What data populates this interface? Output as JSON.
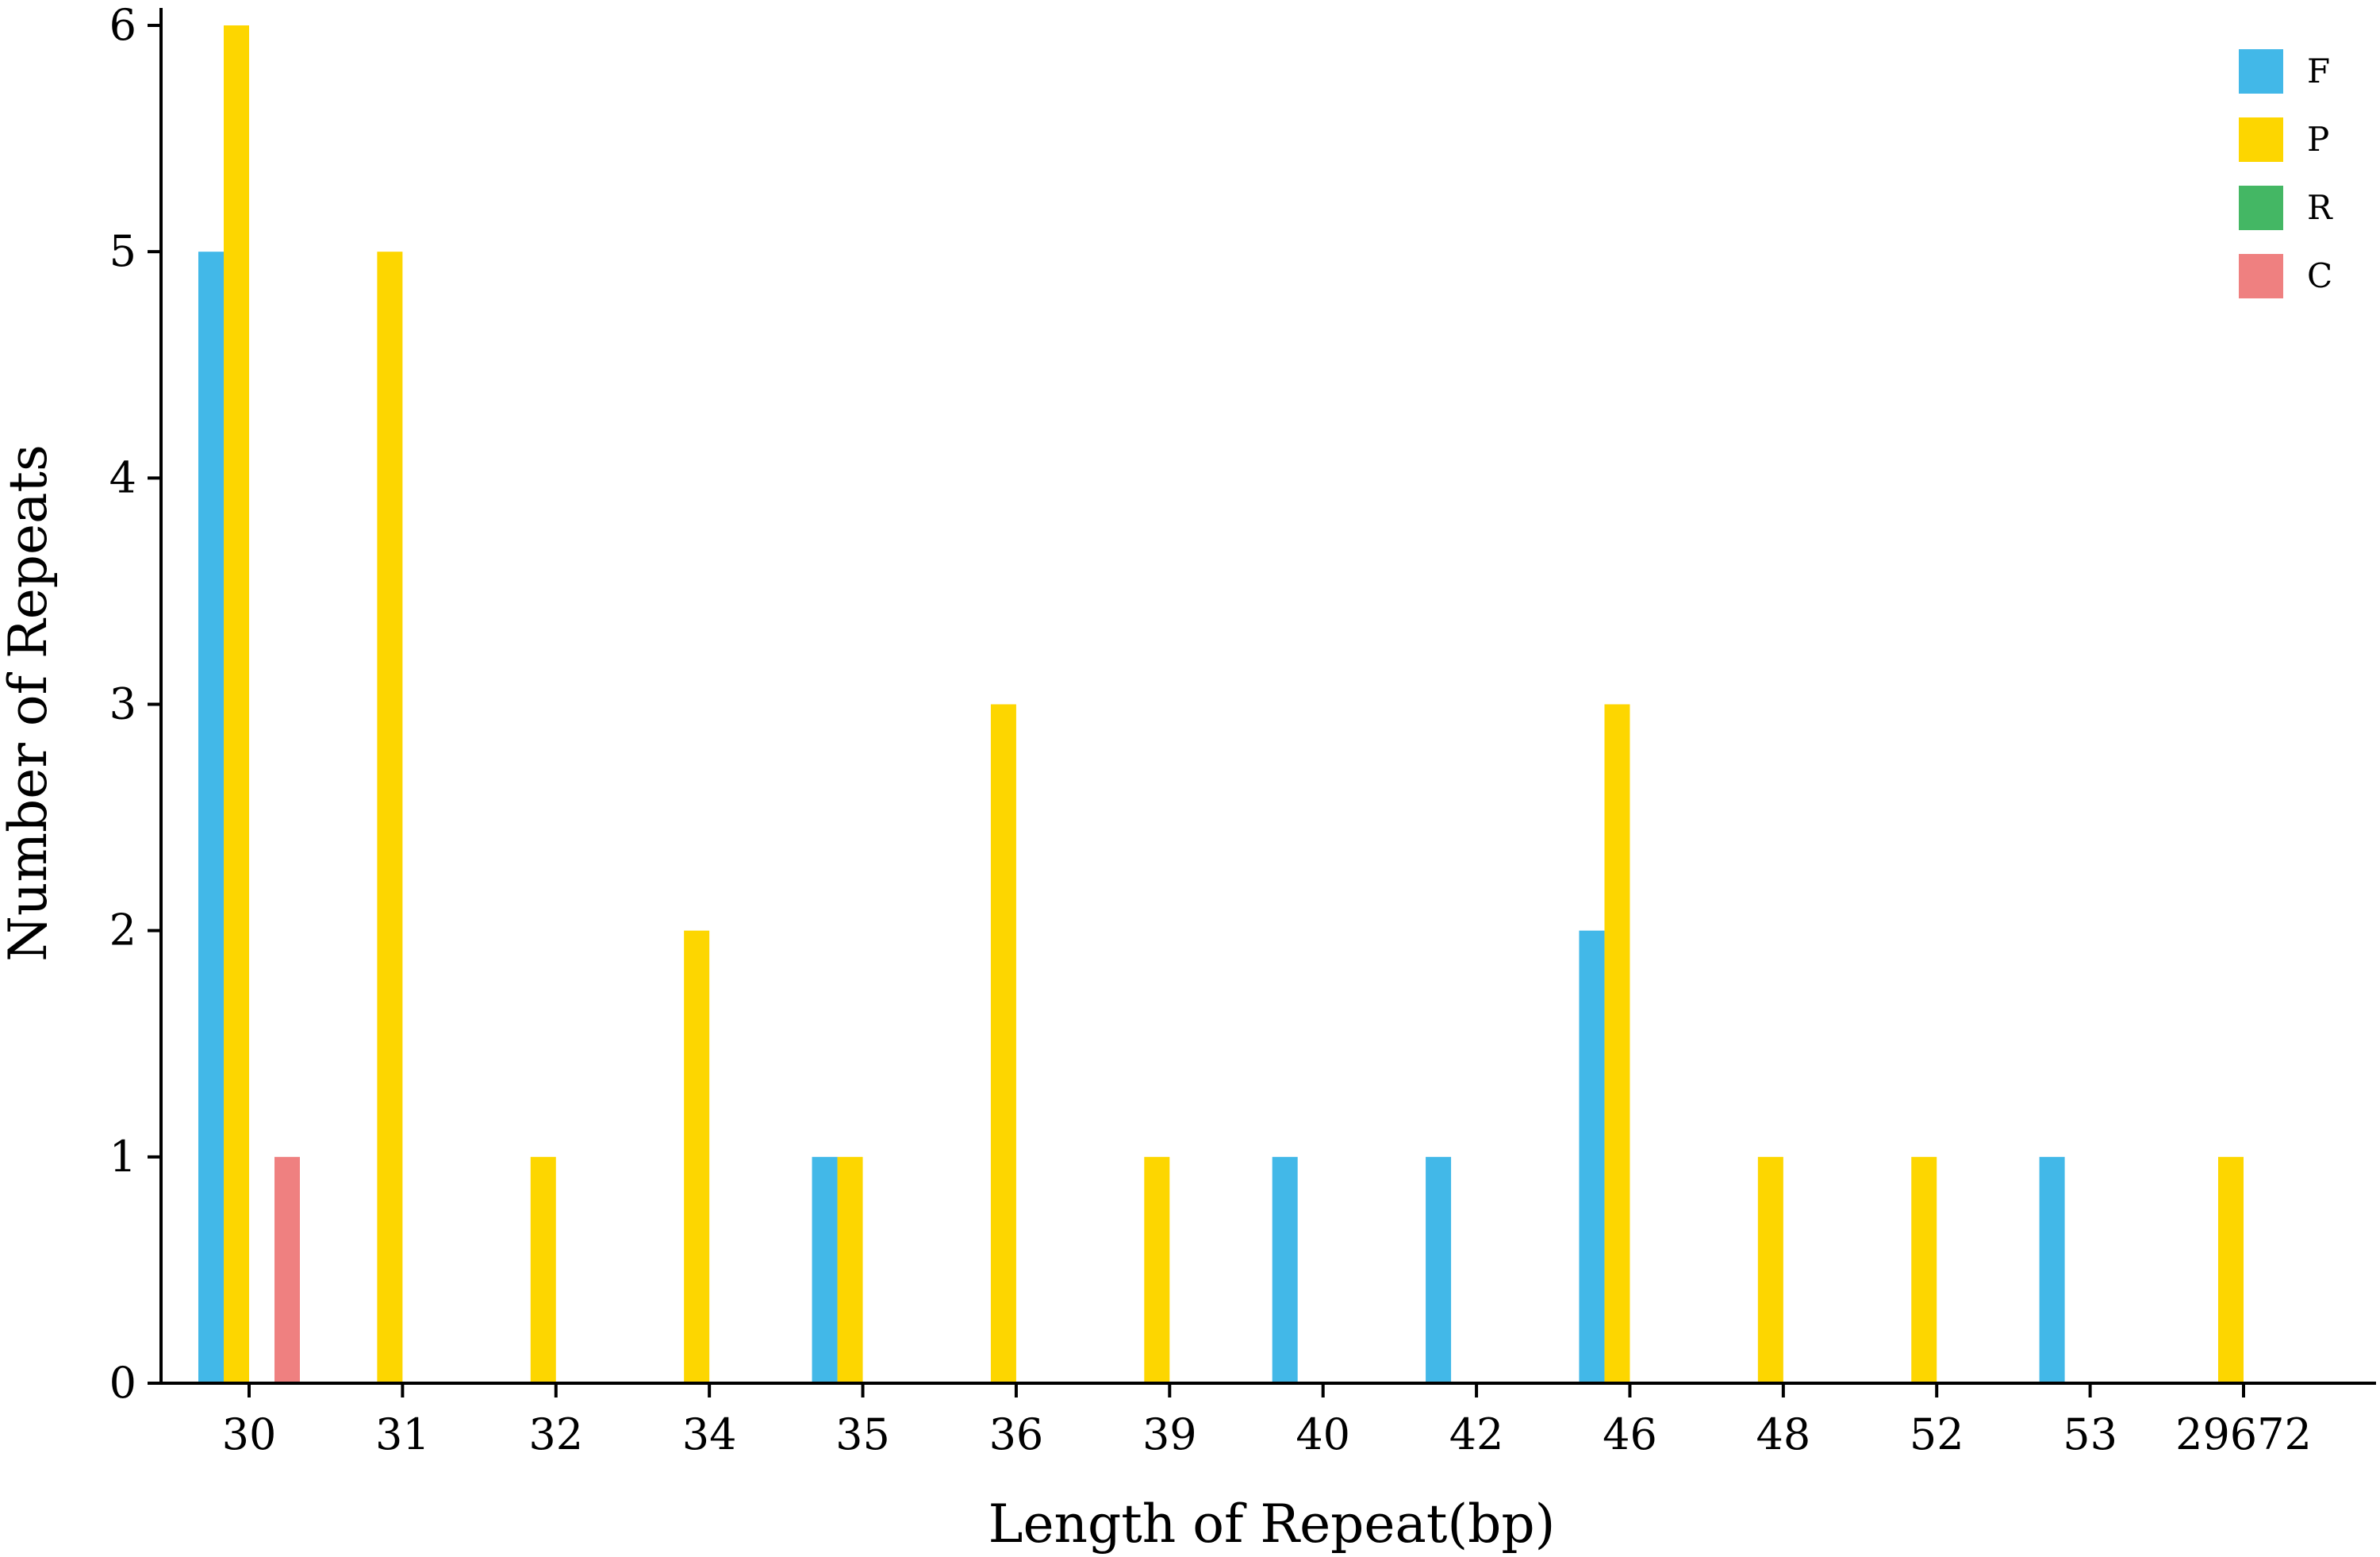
{
  "chart_data": {
    "type": "bar",
    "title": "",
    "xlabel": "Length of Repeat(bp)",
    "ylabel": "Number of Repeats",
    "ylim": [
      0,
      6
    ],
    "yticks": [
      "0",
      "1",
      "2",
      "3",
      "4",
      "5",
      "6"
    ],
    "grid": false,
    "legend_position": "top-right",
    "categories": [
      "30",
      "31",
      "32",
      "34",
      "35",
      "36",
      "39",
      "40",
      "42",
      "46",
      "48",
      "52",
      "53",
      "29672"
    ],
    "series": [
      {
        "name": "F",
        "color": "#42B8E8",
        "values": [
          5,
          0,
          0,
          0,
          1,
          0,
          0,
          1,
          1,
          2,
          0,
          0,
          1,
          0
        ]
      },
      {
        "name": "P",
        "color": "#FDD600",
        "values": [
          6,
          5,
          1,
          2,
          1,
          3,
          1,
          0,
          0,
          3,
          1,
          1,
          0,
          1
        ]
      },
      {
        "name": "R",
        "color": "#44B764",
        "values": [
          0,
          0,
          0,
          0,
          0,
          0,
          0,
          0,
          0,
          0,
          0,
          0,
          0,
          0
        ]
      },
      {
        "name": "C",
        "color": "#EF8080",
        "values": [
          1,
          0,
          0,
          0,
          0,
          0,
          0,
          0,
          0,
          0,
          0,
          0,
          0,
          0
        ]
      }
    ]
  }
}
